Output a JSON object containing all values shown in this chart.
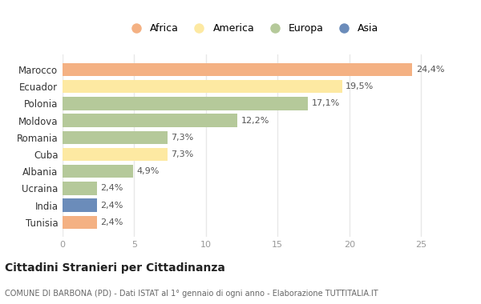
{
  "categories": [
    "Tunisia",
    "India",
    "Ucraina",
    "Albania",
    "Cuba",
    "Romania",
    "Moldova",
    "Polonia",
    "Ecuador",
    "Marocco"
  ],
  "values": [
    2.4,
    2.4,
    2.4,
    4.9,
    7.3,
    7.3,
    12.2,
    17.1,
    19.5,
    24.4
  ],
  "labels": [
    "2,4%",
    "2,4%",
    "2,4%",
    "4,9%",
    "7,3%",
    "7,3%",
    "12,2%",
    "17,1%",
    "19,5%",
    "24,4%"
  ],
  "colors": [
    "#f4b183",
    "#6b8cba",
    "#b5c99a",
    "#b5c99a",
    "#fde9a2",
    "#b5c99a",
    "#b5c99a",
    "#b5c99a",
    "#fde9a2",
    "#f4b183"
  ],
  "legend": [
    {
      "label": "Africa",
      "color": "#f4b183"
    },
    {
      "label": "America",
      "color": "#fde9a2"
    },
    {
      "label": "Europa",
      "color": "#b5c99a"
    },
    {
      "label": "Asia",
      "color": "#6b8cba"
    }
  ],
  "title": "Cittadini Stranieri per Cittadinanza",
  "subtitle": "COMUNE DI BARBONA (PD) - Dati ISTAT al 1° gennaio di ogni anno - Elaborazione TUTTITALIA.IT",
  "xlim": [
    0,
    26.5
  ],
  "xticks": [
    0,
    5,
    10,
    15,
    20,
    25
  ],
  "background_color": "#ffffff",
  "grid_color": "#e8e8e8"
}
